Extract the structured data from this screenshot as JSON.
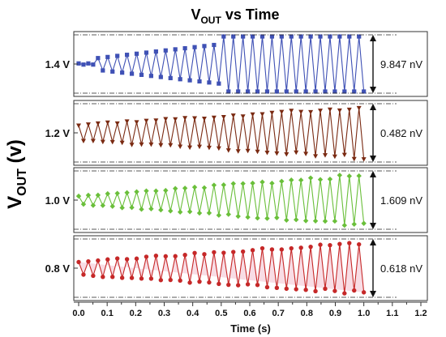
{
  "chart_data": {
    "type": "line",
    "title": {
      "main": "V",
      "sub": "OUT",
      "rest": " vs Time"
    },
    "ylabel": {
      "main": "V",
      "sub": "OUT",
      "rest": " (v)"
    },
    "xlabel": "Time (s)",
    "xlim": [
      0.0,
      1.2
    ],
    "xticks": [
      "0.0",
      "0.1",
      "0.2",
      "0.3",
      "0.4",
      "0.5",
      "0.6",
      "0.7",
      "0.8",
      "0.9",
      "1.0",
      "1.1",
      "1.2"
    ],
    "panels": [
      {
        "label": "1.4 V",
        "color": "#3f51b5",
        "marker": "square",
        "annotation": "9.847 nV",
        "amp_start": 0.05,
        "amp_end": 0.92,
        "first_point": 0.55,
        "n_points": 60
      },
      {
        "label": "1.2 V",
        "color": "#7a2a12",
        "marker": "triangle-down",
        "annotation": "0.482 nV",
        "amp_start": 0.3,
        "amp_end": 0.95,
        "first_point": 0.5,
        "n_points": 60
      },
      {
        "label": "1.0 V",
        "color": "#6abf3a",
        "marker": "diamond",
        "annotation": "1.609 nV",
        "amp_start": 0.15,
        "amp_end": 0.95,
        "first_point": 0.55,
        "n_points": 60
      },
      {
        "label": "0.8 V",
        "color": "#c62828",
        "fill": "#f7d9e2",
        "marker": "circle",
        "annotation": "0.618 nV",
        "amp_start": 0.25,
        "amp_end": 0.95,
        "first_point": 0.6,
        "n_points": 60
      }
    ]
  }
}
